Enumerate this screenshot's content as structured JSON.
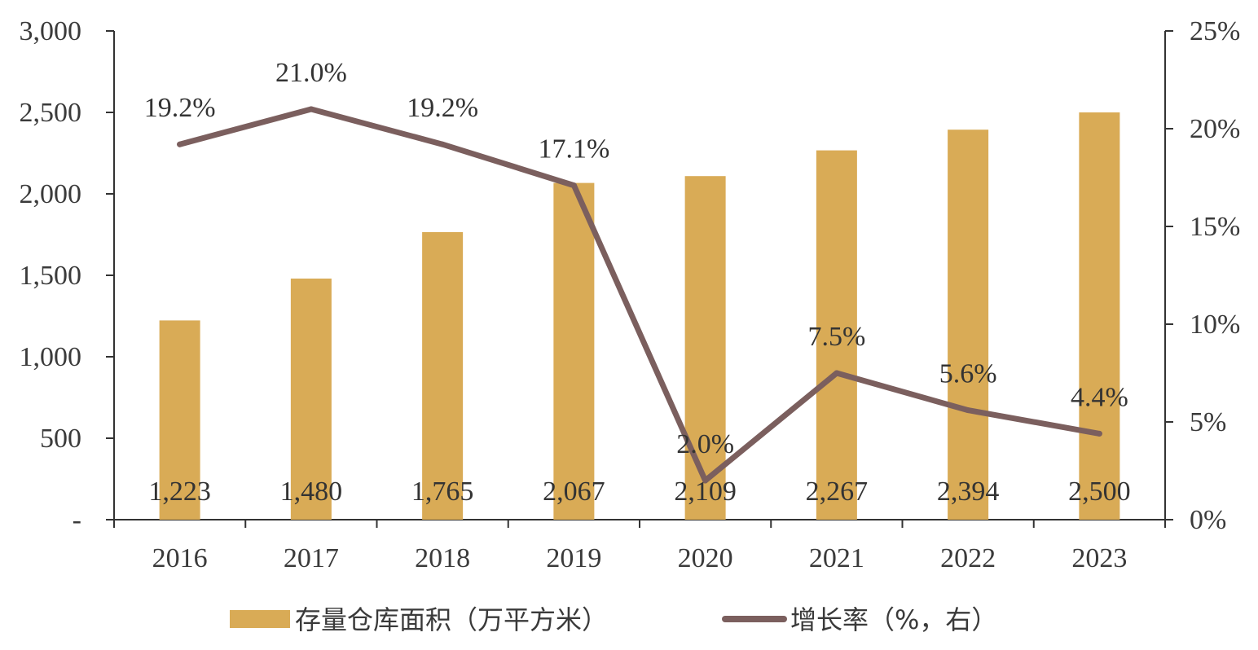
{
  "chart_data": {
    "type": "bar",
    "categories": [
      "2016",
      "2017",
      "2018",
      "2019",
      "2020",
      "2021",
      "2022",
      "2023"
    ],
    "series": [
      {
        "name": "存量仓库面积（万平方米）",
        "type": "bar",
        "axis": "left",
        "values": [
          1223,
          1480,
          1765,
          2067,
          2109,
          2267,
          2394,
          2500
        ],
        "labels": [
          "1,223",
          "1,480",
          "1,765",
          "2,067",
          "2,109",
          "2,267",
          "2,394",
          "2,500"
        ],
        "color": "#D9AB56"
      },
      {
        "name": "增长率（%，右）",
        "type": "line",
        "axis": "right",
        "values": [
          19.2,
          21.0,
          19.2,
          17.1,
          2.0,
          7.5,
          5.6,
          4.4
        ],
        "labels": [
          "19.2%",
          "21.0%",
          "19.2%",
          "17.1%",
          "2.0%",
          "7.5%",
          "5.6%",
          "4.4%"
        ],
        "color": "#7B5F5E"
      }
    ],
    "y_left": {
      "min": 0,
      "max": 3000,
      "ticks": [
        0,
        500,
        1000,
        1500,
        2000,
        2500,
        3000
      ],
      "tick_labels": [
        "-",
        "500",
        "1,000",
        "1,500",
        "2,000",
        "2,500",
        "3,000"
      ]
    },
    "y_right": {
      "min": 0,
      "max": 25,
      "ticks": [
        0,
        5,
        10,
        15,
        20,
        25
      ],
      "tick_labels": [
        "0%",
        "5%",
        "10%",
        "15%",
        "20%",
        "25%"
      ]
    },
    "grid": false,
    "legend_position": "bottom",
    "axis_color": "#333333"
  }
}
